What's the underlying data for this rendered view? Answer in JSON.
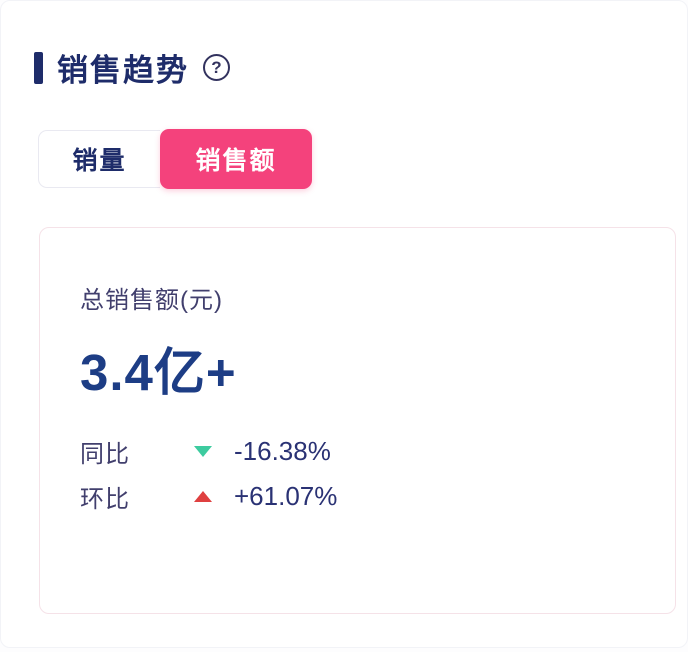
{
  "page": {
    "title": "销售趋势",
    "help_icon": "?"
  },
  "tabs": [
    {
      "label": "销量",
      "active": false
    },
    {
      "label": "销售额",
      "active": true
    }
  ],
  "card": {
    "metric_label": "总销售额(元)",
    "metric_value": "3.4亿+",
    "stats": [
      {
        "label": "同比",
        "direction": "down",
        "value": "-16.38%"
      },
      {
        "label": "环比",
        "direction": "up",
        "value": "+61.07%"
      }
    ]
  },
  "icons": {
    "help": "question-mark-circle",
    "down": "triangle-down",
    "up": "triangle-up"
  },
  "colors": {
    "accent_pink": "#f4427c",
    "title_navy": "#1e2c6a",
    "metric_navy": "#1d3d85",
    "label_purple": "#413f6d",
    "value_navy": "#2a3274",
    "down_green": "#3dcb9f",
    "up_red": "#df4040",
    "card_border": "#f5e2e8"
  }
}
